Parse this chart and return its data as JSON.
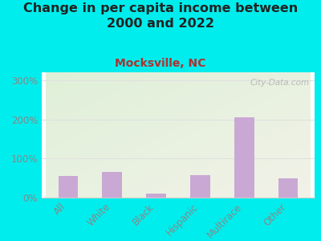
{
  "title": "Change in per capita income between\n2000 and 2022",
  "subtitle": "Mocksville, NC",
  "categories": [
    "All",
    "White",
    "Black",
    "Hispanic",
    "Multirace",
    "Other"
  ],
  "values": [
    55,
    65,
    10,
    57,
    205,
    50
  ],
  "bar_color": "#c9a8d4",
  "title_fontsize": 11.5,
  "subtitle_fontsize": 10,
  "subtitle_color": "#b03030",
  "background_outer": "#00EDED",
  "background_inner_top_left": "#dff0d8",
  "background_inner_bottom_right": "#f0f0e0",
  "ylim": [
    0,
    320
  ],
  "yticks": [
    0,
    100,
    200,
    300
  ],
  "ytick_labels": [
    "0%",
    "100%",
    "200%",
    "300%"
  ],
  "watermark": "City-Data.com",
  "watermark_color": "#b0b0b0",
  "tick_label_color": "#888888",
  "grid_color": "#e0e0e0"
}
